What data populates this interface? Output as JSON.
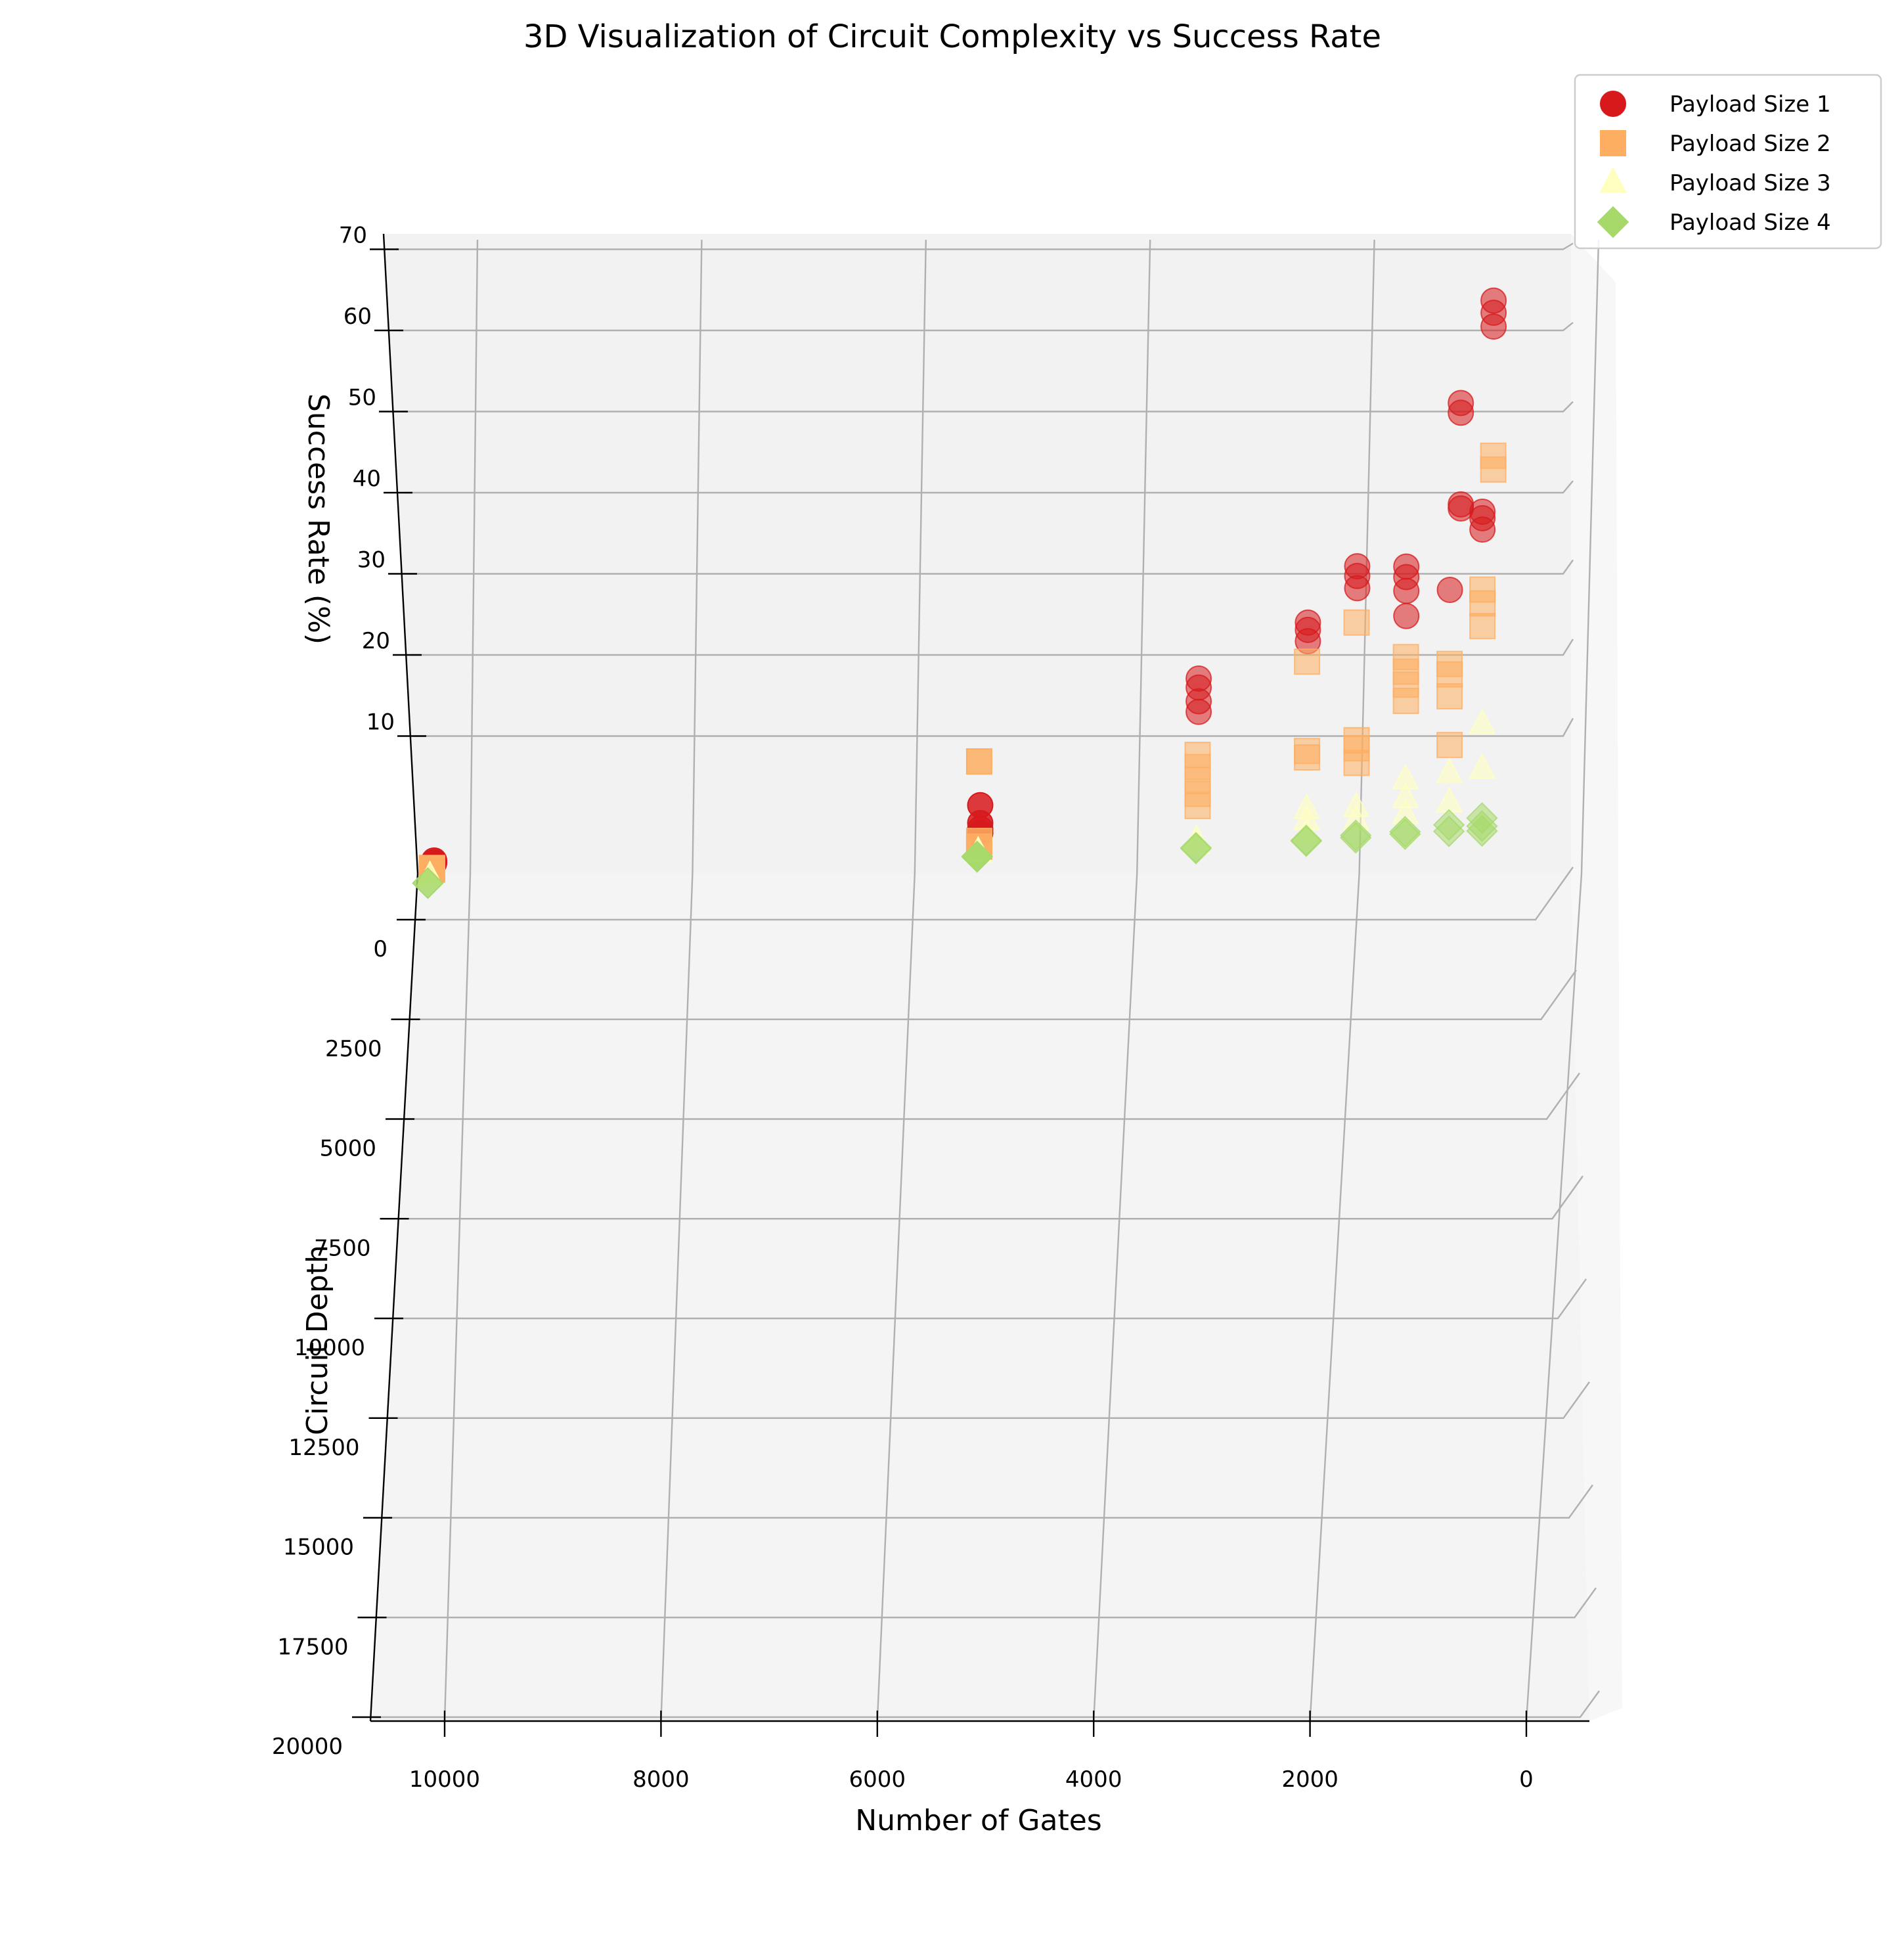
{
  "chart_data": {
    "type": "scatter3d",
    "title": "3D Visualization of Circuit Complexity vs Success Rate",
    "xlabel": "Number of Gates",
    "ylabel": "Circuit Depth",
    "zlabel": "Success Rate (%)",
    "x_ticks": [
      "10000",
      "8000",
      "6000",
      "4000",
      "2000",
      "0"
    ],
    "y_ticks": [
      "0",
      "2500",
      "5000",
      "7500",
      "10000",
      "12500",
      "15000",
      "17500",
      "20000"
    ],
    "z_ticks": [
      "10",
      "20",
      "30",
      "40",
      "50",
      "60",
      "70"
    ],
    "legend_position": "top-right",
    "grid": true,
    "series": [
      {
        "name": "Payload Size 1",
        "marker": "circle",
        "color": "#d7191c",
        "points": [
          {
            "gates": 300,
            "depth": 150,
            "rate": 65.5
          },
          {
            "gates": 300,
            "depth": 150,
            "rate": 64.0
          },
          {
            "gates": 300,
            "depth": 150,
            "rate": 62.3
          },
          {
            "gates": 600,
            "depth": 300,
            "rate": 53.0
          },
          {
            "gates": 600,
            "depth": 300,
            "rate": 51.8
          },
          {
            "gates": 600,
            "depth": 300,
            "rate": 40.5
          },
          {
            "gates": 600,
            "depth": 300,
            "rate": 40.0
          },
          {
            "gates": 400,
            "depth": 300,
            "rate": 39.6
          },
          {
            "gates": 400,
            "depth": 300,
            "rate": 38.8
          },
          {
            "gates": 400,
            "depth": 300,
            "rate": 37.4
          },
          {
            "gates": 700,
            "depth": 350,
            "rate": 30.0
          },
          {
            "gates": 1100,
            "depth": 500,
            "rate": 33.0
          },
          {
            "gates": 1100,
            "depth": 500,
            "rate": 31.7
          },
          {
            "gates": 1100,
            "depth": 500,
            "rate": 30.0
          },
          {
            "gates": 1100,
            "depth": 500,
            "rate": 26.9
          },
          {
            "gates": 1550,
            "depth": 700,
            "rate": 33.2
          },
          {
            "gates": 1550,
            "depth": 700,
            "rate": 32.0
          },
          {
            "gates": 1550,
            "depth": 700,
            "rate": 30.5
          },
          {
            "gates": 2000,
            "depth": 1000,
            "rate": 26.5
          },
          {
            "gates": 2000,
            "depth": 1000,
            "rate": 25.6
          },
          {
            "gates": 2000,
            "depth": 1000,
            "rate": 24.2
          },
          {
            "gates": 3000,
            "depth": 1500,
            "rate": 20.0
          },
          {
            "gates": 3000,
            "depth": 1500,
            "rate": 18.9
          },
          {
            "gates": 3000,
            "depth": 1500,
            "rate": 17.2
          },
          {
            "gates": 3000,
            "depth": 1500,
            "rate": 15.9
          },
          {
            "gates": 5000,
            "depth": 2500,
            "rate": 5.2
          },
          {
            "gates": 5000,
            "depth": 2500,
            "rate": 3.0
          },
          {
            "gates": 5000,
            "depth": 2500,
            "rate": 2.3
          },
          {
            "gates": 5000,
            "depth": 2500,
            "rate": 1.8
          },
          {
            "gates": 10000,
            "depth": 5000,
            "rate": 0.4
          },
          {
            "gates": 10000,
            "depth": 5000,
            "rate": 0.2
          },
          {
            "gates": 10000,
            "depth": 5000,
            "rate": 0.1
          }
        ]
      },
      {
        "name": "Payload Size 2",
        "marker": "square",
        "color": "#fdae61",
        "points": [
          {
            "gates": 300,
            "depth": 300,
            "rate": 46.5
          },
          {
            "gates": 300,
            "depth": 300,
            "rate": 44.8
          },
          {
            "gates": 400,
            "depth": 300,
            "rate": 30.0
          },
          {
            "gates": 400,
            "depth": 300,
            "rate": 28.3
          },
          {
            "gates": 400,
            "depth": 300,
            "rate": 25.5
          },
          {
            "gates": 700,
            "depth": 500,
            "rate": 21.0
          },
          {
            "gates": 700,
            "depth": 500,
            "rate": 19.7
          },
          {
            "gates": 700,
            "depth": 500,
            "rate": 17.0
          },
          {
            "gates": 700,
            "depth": 500,
            "rate": 11.0
          },
          {
            "gates": 1100,
            "depth": 700,
            "rate": 22.0
          },
          {
            "gates": 1100,
            "depth": 700,
            "rate": 20.2
          },
          {
            "gates": 1100,
            "depth": 700,
            "rate": 18.6
          },
          {
            "gates": 1100,
            "depth": 700,
            "rate": 16.6
          },
          {
            "gates": 1550,
            "depth": 1000,
            "rate": 26.5
          },
          {
            "gates": 1550,
            "depth": 1000,
            "rate": 12.0
          },
          {
            "gates": 1550,
            "depth": 1000,
            "rate": 11.0
          },
          {
            "gates": 1550,
            "depth": 1000,
            "rate": 9.2
          },
          {
            "gates": 2000,
            "depth": 1400,
            "rate": 22.0
          },
          {
            "gates": 2000,
            "depth": 1400,
            "rate": 11.0
          },
          {
            "gates": 2000,
            "depth": 1400,
            "rate": 10.2
          },
          {
            "gates": 3000,
            "depth": 2000,
            "rate": 11.0
          },
          {
            "gates": 3000,
            "depth": 2000,
            "rate": 9.5
          },
          {
            "gates": 3000,
            "depth": 2000,
            "rate": 7.9
          },
          {
            "gates": 3000,
            "depth": 2000,
            "rate": 6.2
          },
          {
            "gates": 3000,
            "depth": 2000,
            "rate": 4.7
          },
          {
            "gates": 5000,
            "depth": 3000,
            "rate": 11.0
          },
          {
            "gates": 5000,
            "depth": 3000,
            "rate": 1.2
          },
          {
            "gates": 5000,
            "depth": 3000,
            "rate": 0.5
          },
          {
            "gates": 10000,
            "depth": 6000,
            "rate": 0.3
          },
          {
            "gates": 10000,
            "depth": 6000,
            "rate": 0.2
          },
          {
            "gates": 10000,
            "depth": 6000,
            "rate": 0.1
          }
        ]
      },
      {
        "name": "Payload Size 3",
        "marker": "triangle",
        "color": "#ffffbf",
        "points": [
          {
            "gates": 400,
            "depth": 400,
            "rate": 13.5
          },
          {
            "gates": 400,
            "depth": 400,
            "rate": 8.0
          },
          {
            "gates": 700,
            "depth": 600,
            "rate": 7.6
          },
          {
            "gates": 700,
            "depth": 600,
            "rate": 4.0
          },
          {
            "gates": 1100,
            "depth": 900,
            "rate": 7.1
          },
          {
            "gates": 1100,
            "depth": 900,
            "rate": 4.8
          },
          {
            "gates": 1100,
            "depth": 900,
            "rate": 2.8
          },
          {
            "gates": 1550,
            "depth": 1200,
            "rate": 3.9
          },
          {
            "gates": 1550,
            "depth": 1200,
            "rate": 2.3
          },
          {
            "gates": 2000,
            "depth": 1600,
            "rate": 4.0
          },
          {
            "gates": 2000,
            "depth": 1600,
            "rate": 2.6
          },
          {
            "gates": 2000,
            "depth": 1600,
            "rate": 1.0
          },
          {
            "gates": 3000,
            "depth": 2500,
            "rate": 0.9
          },
          {
            "gates": 3000,
            "depth": 2500,
            "rate": 0.4
          },
          {
            "gates": 5000,
            "depth": 3500,
            "rate": 0.3
          },
          {
            "gates": 5000,
            "depth": 3500,
            "rate": 0.2
          },
          {
            "gates": 10000,
            "depth": 7000,
            "rate": 0.1
          }
        ]
      },
      {
        "name": "Payload Size 4",
        "marker": "diamond",
        "color": "#a6d96a",
        "points": [
          {
            "gates": 400,
            "depth": 500,
            "rate": 2.0
          },
          {
            "gates": 400,
            "depth": 500,
            "rate": 1.0
          },
          {
            "gates": 400,
            "depth": 500,
            "rate": 0.4
          },
          {
            "gates": 700,
            "depth": 800,
            "rate": 1.4
          },
          {
            "gates": 700,
            "depth": 800,
            "rate": 0.6
          },
          {
            "gates": 1100,
            "depth": 1100,
            "rate": 0.8
          },
          {
            "gates": 1100,
            "depth": 1100,
            "rate": 0.5
          },
          {
            "gates": 1550,
            "depth": 1400,
            "rate": 0.6
          },
          {
            "gates": 1550,
            "depth": 1400,
            "rate": 0.3
          },
          {
            "gates": 2000,
            "depth": 1800,
            "rate": 0.3
          },
          {
            "gates": 2000,
            "depth": 1800,
            "rate": 0.2
          },
          {
            "gates": 3000,
            "depth": 2800,
            "rate": 0.2
          },
          {
            "gates": 3000,
            "depth": 2800,
            "rate": 0.1
          },
          {
            "gates": 5000,
            "depth": 4000,
            "rate": 0.1
          },
          {
            "gates": 5000,
            "depth": 4000,
            "rate": 0.05
          },
          {
            "gates": 10000,
            "depth": 8000,
            "rate": 0.05
          }
        ]
      }
    ]
  }
}
